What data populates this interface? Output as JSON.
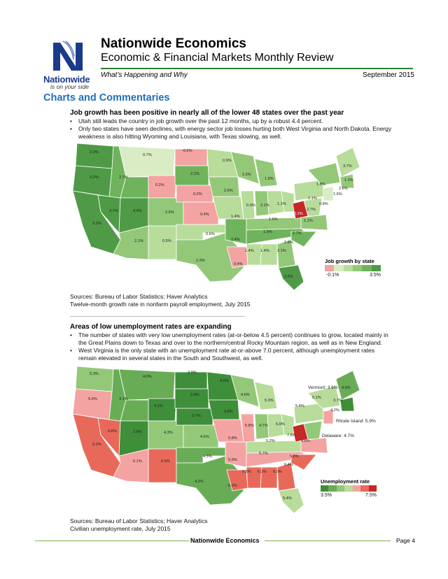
{
  "header": {
    "logo_word": "Nationwide",
    "logo_tag": "is on your side",
    "title": "Nationwide Economics",
    "subtitle": "Economic & Financial Markets Monthly Review",
    "tagline": "What’s Happening and Why",
    "date": "September 2015"
  },
  "section_title": "Charts and Commentaries",
  "block1": {
    "title": "Job growth has been positive in nearly all of the lower 48 states over the past year",
    "bullets": [
      "Utah still leads the country in job growth over the past 12 months, up by a robust 4.4 percent.",
      "Only two states have seen declines, with energy sector job losses hurting both West Virginia and North Dakota. Energy weakness is also hitting Wyoming and Louisiana, with Texas slowing, as well."
    ],
    "legend_title": "Job growth by state",
    "legend_min": "-0.1%",
    "legend_max": "3.5%",
    "legend_colors": [
      "#f4a3a3",
      "#d9ecc4",
      "#b8dc9a",
      "#93c878",
      "#6fb35c",
      "#4f9a46"
    ],
    "sources": "Sources: Bureau of Labor Statistics; Haver Analytics",
    "note": "Twelve-month growth rate in nonfarm payroll employment, July 2015",
    "labels": [
      "3.3%",
      "0.7%",
      "-0.6%",
      "0.9%",
      "3.7%",
      "3.2%",
      "2.7%",
      "2.1%",
      "1.6%",
      "1.9%",
      "1.2%",
      "0.2%",
      "0.2%",
      "2.6%",
      "1.8%",
      "2.6%",
      "1.6%",
      "3.7%",
      "4.4%",
      "2.6%",
      "0.4%",
      "1.4%",
      "0.9%",
      "2.1%",
      "1.1%",
      "1.1%",
      "0.8%",
      "2.7%",
      "3.2%",
      "1.6%",
      "-0.1%",
      "1.1%",
      "0.6%",
      "1.9%",
      "2.7%",
      "2.1%",
      "0.5%",
      "2.4%",
      "2.8%",
      "1.4%",
      "1.4%",
      "2.1%",
      "2.3%",
      "0.4%",
      "3.5%"
    ]
  },
  "block2": {
    "title": "Areas of low unemployment rates are expanding",
    "bullets": [
      "The number of states with very low unemployment rates (at-or-below 4.5 percent) continues to grow, located mainly in the Great Plains down to Texas and over to the northern/central Rocky Mountain region, as well as in New England.",
      "West Virginia is the only state with an unemployment rate at-or-above 7.0 percent, although unemployment rates remain elevated in several states in the South and Southwest, as well."
    ],
    "legend_title": "Unemployment rate",
    "legend_min": "3.5%",
    "legend_max": "7.5%",
    "legend_colors": [
      "#3e8e3a",
      "#68ad55",
      "#93c878",
      "#b8dc9a",
      "#f4a3a3",
      "#e8695a",
      "#c62828"
    ],
    "sources": "Sources: Bureau of Labor Statistics; Haver Analytics",
    "note": "Civilian unemployment rate, July 2015",
    "labels": [
      "5.3%",
      "4.0%",
      "3.9%",
      "4.0%",
      "4.6%",
      "5.9%",
      "4.1%",
      "3.8%",
      "5.3%",
      "4.1%",
      "6.8%",
      "3.6%",
      "2.7%",
      "3.8%",
      "5.4%",
      "6.2%",
      "4.3%",
      "4.6%",
      "5.8%",
      "4.7%",
      "5.0%",
      "5.8%",
      "5.2%",
      "7.5%",
      "4.8%",
      "6.1%",
      "6.5%",
      "4.5%",
      "5.7%",
      "5.8%",
      "5.6%",
      "6.4%",
      "6.5%",
      "6.2%",
      "6.0%",
      "4.2%",
      "6.2%",
      "5.4%",
      "4.6%",
      "3.7%",
      "4.2%",
      "5.1%"
    ],
    "callouts": [
      "Vermont: 3.6%",
      "Rhode Island: 5.9%",
      "Delaware: 4.7%"
    ]
  },
  "footer": {
    "text": "Nationwide Economics",
    "page": "Page 4"
  }
}
